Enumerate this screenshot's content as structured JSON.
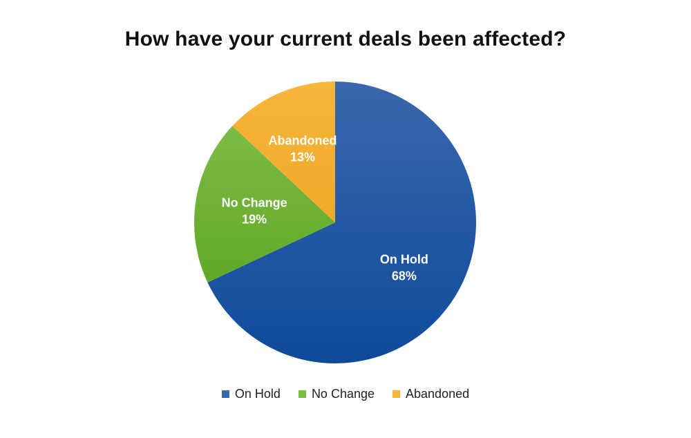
{
  "chart_data": {
    "type": "pie",
    "title": "How have your current deals been affected?",
    "slices": [
      {
        "label": "On Hold",
        "value": 68,
        "display": "68%",
        "color": "#0E4A9A",
        "color_light": "#3A67AD"
      },
      {
        "label": "No Change",
        "value": 19,
        "display": "19%",
        "color": "#62A82A",
        "color_light": "#7CBC43"
      },
      {
        "label": "Abandoned",
        "value": 13,
        "display": "13%",
        "color": "#F0A928",
        "color_light": "#F6B63B"
      }
    ],
    "start_angle_deg": 0,
    "direction": "clockwise",
    "legend_position": "bottom"
  }
}
